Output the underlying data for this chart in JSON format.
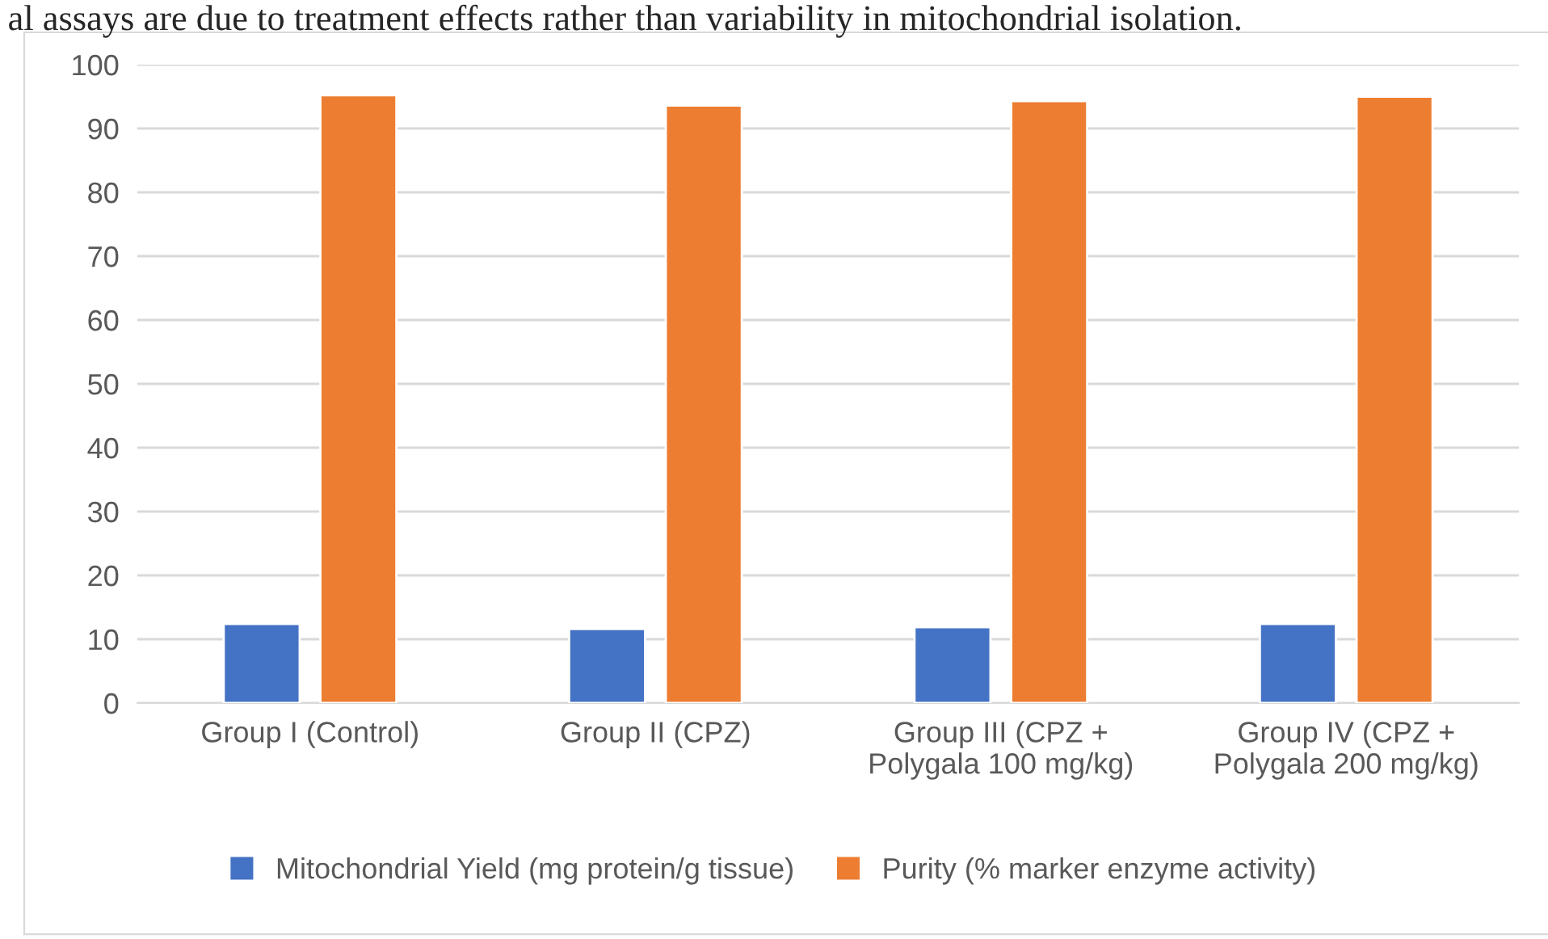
{
  "chart_data": {
    "type": "bar",
    "annotations": [
      "al assays are due to treatment effects rather than variability in mitochondrial isolation."
    ],
    "categories": [
      "Group I (Control)",
      "Group II (CPZ)",
      "Group III (CPZ +\nPolygala 100 mg/kg)",
      "Group IV (CPZ +\nPolygala 200 mg/kg)"
    ],
    "series": [
      {
        "name": "Mitochondrial Yield (mg protein/g tissue)",
        "color": "#4472c4",
        "values": [
          12.4,
          11.6,
          11.9,
          12.4
        ]
      },
      {
        "name": "Purity (% marker enzyme activity)",
        "color": "#ed7d31",
        "values": [
          95.2,
          93.6,
          94.3,
          95.0
        ]
      }
    ],
    "ylim": [
      0,
      100
    ],
    "yticks": [
      0,
      10,
      20,
      30,
      40,
      50,
      60,
      70,
      80,
      90,
      100
    ],
    "grid": "y",
    "legend": "bottom"
  }
}
